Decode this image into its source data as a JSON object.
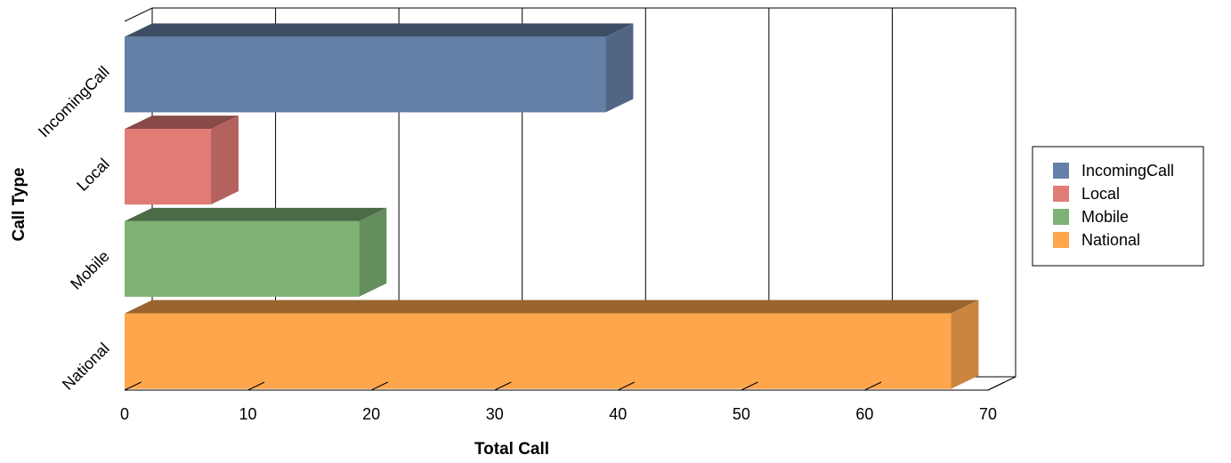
{
  "chart_data": {
    "type": "bar",
    "orientation": "horizontal",
    "style": "3d",
    "categories": [
      "IncomingCall",
      "Local",
      "Mobile",
      "National"
    ],
    "values": [
      39,
      7,
      19,
      67
    ],
    "xlabel": "Total Call",
    "ylabel": "Call Type",
    "xlim": [
      0,
      70
    ],
    "xticks": [
      "0",
      "10",
      "20",
      "30",
      "40",
      "50",
      "60",
      "70"
    ],
    "grid": "vertical",
    "legend": {
      "position": "right",
      "entries": [
        "IncomingCall",
        "Local",
        "Mobile",
        "National"
      ]
    },
    "colors": [
      "#6580A6",
      "#E17B75",
      "#7DB274",
      "#FFA64D"
    ]
  }
}
